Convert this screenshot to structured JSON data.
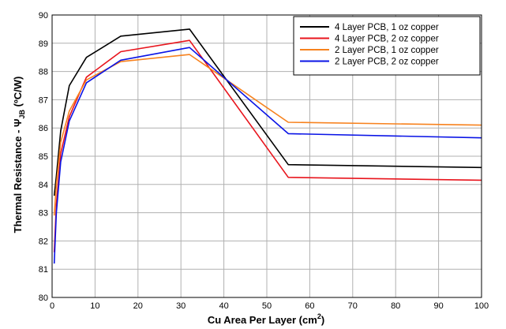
{
  "chart_data": {
    "type": "line",
    "xlabel": "Cu Area Per Layer (cm",
    "xlabel_superscript": "2",
    "xlabel_suffix": ")",
    "ylabel_main": "Thermal Resistance - Ψ",
    "ylabel_subscript": "JB",
    "ylabel_suffix": " (ºC/W)",
    "xlim": [
      0,
      100
    ],
    "ylim": [
      80,
      90
    ],
    "x_ticks": [
      0,
      10,
      20,
      30,
      40,
      50,
      60,
      70,
      80,
      90,
      100
    ],
    "y_ticks": [
      80,
      81,
      82,
      83,
      84,
      85,
      86,
      87,
      88,
      89,
      90
    ],
    "grid": true,
    "legend_position": "top-right",
    "series": [
      {
        "name": "4 Layer PCB, 1 oz copper",
        "color": "#000000",
        "points": [
          [
            0.5,
            83.6
          ],
          [
            1,
            84.3
          ],
          [
            2,
            85.9
          ],
          [
            4,
            87.5
          ],
          [
            8,
            88.5
          ],
          [
            16,
            89.25
          ],
          [
            32,
            89.5
          ],
          [
            55,
            84.7
          ],
          [
            100,
            84.6
          ]
        ]
      },
      {
        "name": "4 Layer PCB, 2 oz copper",
        "color": "#e8141c",
        "points": [
          [
            0.5,
            81.6
          ],
          [
            1,
            83.3
          ],
          [
            2,
            85.1
          ],
          [
            4,
            86.4
          ],
          [
            8,
            87.8
          ],
          [
            16,
            88.7
          ],
          [
            32,
            89.1
          ],
          [
            55,
            84.25
          ],
          [
            100,
            84.15
          ]
        ]
      },
      {
        "name": "2 Layer PCB, 1 oz copper",
        "color": "#f7821e",
        "points": [
          [
            0.5,
            82.9
          ],
          [
            1,
            84.0
          ],
          [
            2,
            85.5
          ],
          [
            4,
            86.6
          ],
          [
            8,
            87.7
          ],
          [
            16,
            88.35
          ],
          [
            32,
            88.6
          ],
          [
            55,
            86.2
          ],
          [
            100,
            86.1
          ]
        ]
      },
      {
        "name": "2 Layer PCB, 2 oz copper",
        "color": "#0a14e6",
        "points": [
          [
            0.5,
            81.2
          ],
          [
            1,
            83.0
          ],
          [
            2,
            84.8
          ],
          [
            4,
            86.25
          ],
          [
            8,
            87.6
          ],
          [
            16,
            88.4
          ],
          [
            32,
            88.85
          ],
          [
            55,
            85.8
          ],
          [
            100,
            85.65
          ]
        ]
      }
    ]
  }
}
